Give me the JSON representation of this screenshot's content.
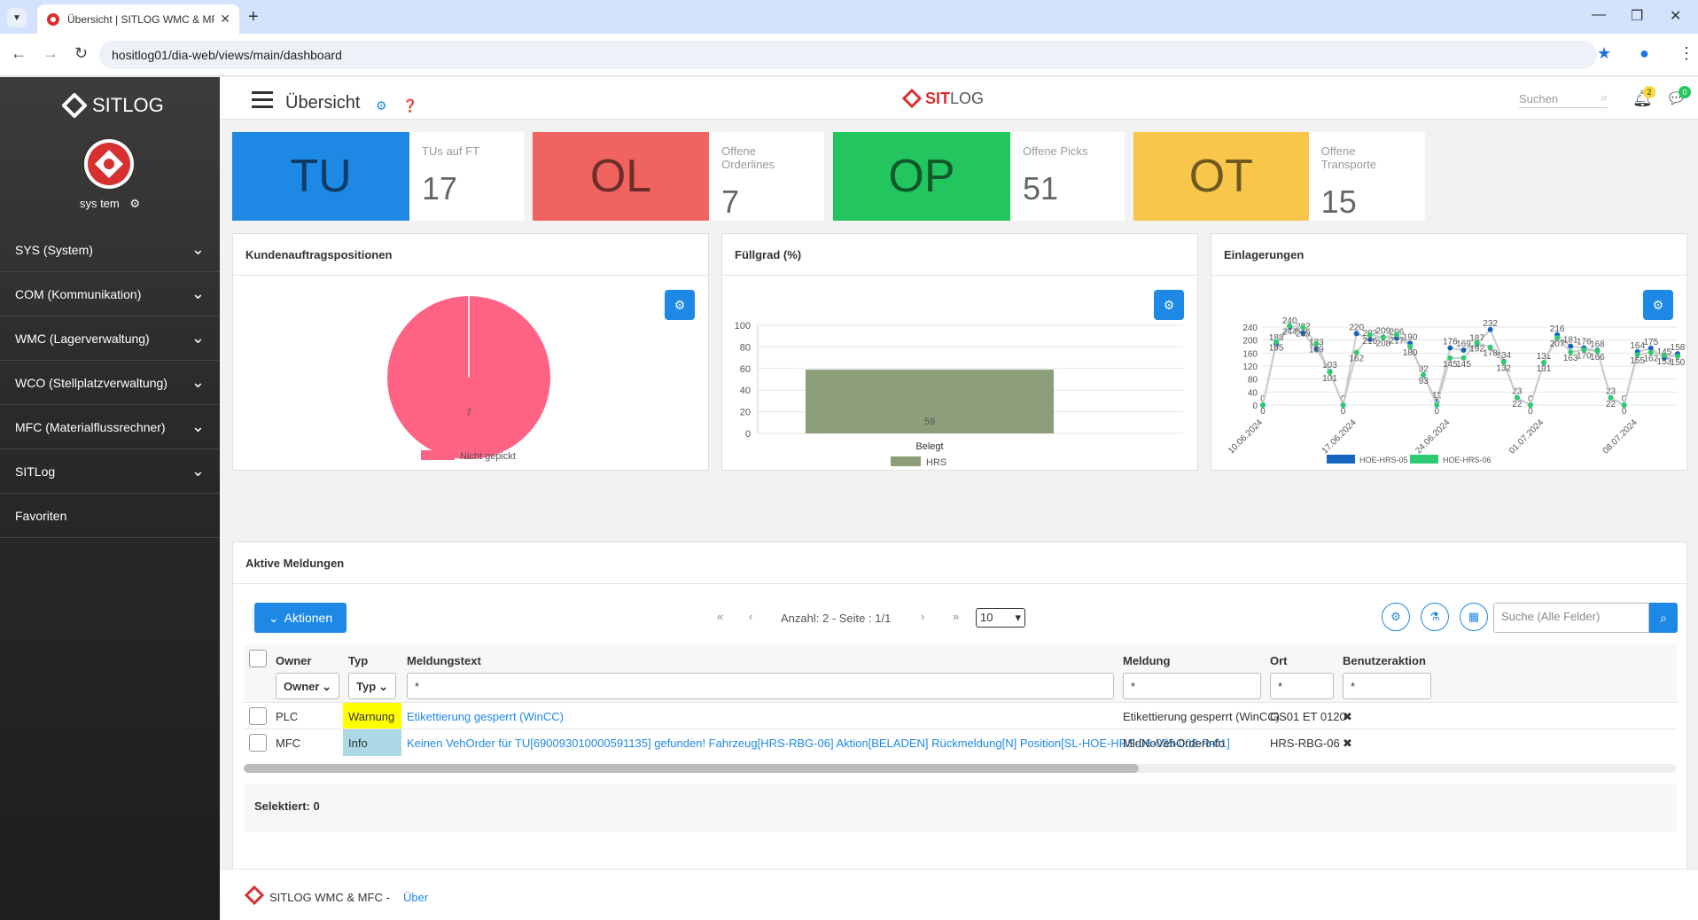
{
  "browser": {
    "tab_title": "Übersicht | SITLOG WMC & MF...",
    "url": "hositlog01/dia-web/views/main/dashboard"
  },
  "sidebar": {
    "brand": "SITLOG",
    "user": "sys tem",
    "items": [
      {
        "label": "SYS (System)",
        "expandable": true
      },
      {
        "label": "COM (Kommunikation)",
        "expandable": true
      },
      {
        "label": "WMC (Lagerverwaltung)",
        "expandable": true
      },
      {
        "label": "WCO (Stellplatzverwaltung)",
        "expandable": true
      },
      {
        "label": "MFC (Materialflussrechner)",
        "expandable": true
      },
      {
        "label": "SITLog",
        "expandable": true
      },
      {
        "label": "Favoriten",
        "expandable": false
      }
    ]
  },
  "header": {
    "title": "Übersicht",
    "brand_a": "SIT",
    "brand_b": "LOG",
    "search_placeholder": "Suchen",
    "bell_count": "2",
    "chat_count": "0"
  },
  "kpis": [
    {
      "abbr": "TU",
      "label": "TUs auf FT",
      "value": "17",
      "color": "#1e88e5"
    },
    {
      "abbr": "OL",
      "label": "Offene Orderlines",
      "value": "7",
      "color": "#ef6461"
    },
    {
      "abbr": "OP",
      "label": "Offene Picks",
      "value": "51",
      "color": "#22c55e"
    },
    {
      "abbr": "OT",
      "label": "Offene Transporte",
      "value": "15",
      "color": "#f8c64a"
    }
  ],
  "panels": {
    "p1": "Kundenauftragspositionen",
    "p2": "Füllgrad (%)",
    "p3": "Einlagerungen",
    "p4": "Aktive Meldungen"
  },
  "chart_data": [
    {
      "type": "pie",
      "title": "Kundenauftragspositionen",
      "slices": [
        {
          "name": "Nicht gepickt",
          "value": 7
        }
      ],
      "color": "#ff6384"
    },
    {
      "type": "bar",
      "title": "Füllgrad (%)",
      "categories": [
        "Belegt"
      ],
      "series": [
        {
          "name": "HRS",
          "values": [
            59
          ]
        }
      ],
      "ylim": [
        0,
        100
      ],
      "yticks": [
        0,
        20,
        40,
        60,
        80,
        100
      ],
      "color": "#8d9e7b"
    },
    {
      "type": "line",
      "title": "Einlagerungen",
      "xticks": [
        "10.06.2024",
        "17.06.2024",
        "24.06.2024",
        "01.07.2024",
        "08.07.2024"
      ],
      "yticks": [
        0,
        40,
        80,
        120,
        160,
        200,
        240
      ],
      "ylim": [
        0,
        240
      ],
      "series": [
        {
          "name": "HOE-HRS-05",
          "color": "#1565c0",
          "values": [
            0,
            188,
            240,
            222,
            173,
            103,
            0,
            220,
            202,
            209,
            206,
            190,
            92,
            11,
            176,
            169,
            187,
            232,
            134,
            23,
            0,
            131,
            216,
            181,
            176,
            168,
            23,
            0,
            164,
            175,
            145,
            158
          ]
        },
        {
          "name": "HOE-HRS-06",
          "color": "#2ecc71",
          "values": [
            0,
            195,
            244,
            239,
            189,
            101,
            0,
            162,
            216,
            208,
            217,
            180,
            93,
            0,
            145,
            145,
            192,
            178,
            132,
            22,
            0,
            131,
            207,
            163,
            170,
            166,
            22,
            0,
            155,
            162,
            153,
            150
          ]
        }
      ]
    }
  ],
  "table": {
    "aktionen": "Aktionen",
    "pager": "Anzahl: 2 - Seite : 1/1",
    "page_size": "10",
    "search_placeholder": "Suche (Alle Felder)",
    "headers": {
      "owner": "Owner",
      "typ": "Typ",
      "text": "Meldungstext",
      "meldung": "Meldung",
      "ort": "Ort",
      "ben": "Benutzeraktion"
    },
    "filters": {
      "owner": "Owner",
      "typ": "Typ",
      "text": "*",
      "meldung": "*",
      "ort": "*",
      "ben": "*"
    },
    "rows": [
      {
        "owner": "PLC",
        "typ": "Warnung",
        "text": "Etikettierung gesperrt (WinCC)",
        "meldung": "Etikettierung gesperrt (WinCC)",
        "ort": "GS01 ET 0120",
        "ben": "✖"
      },
      {
        "owner": "MFC",
        "typ": "Info",
        "text": "Keinen VehOrder für TU[690093010000591135] gefunden! Fahrzeug[HRS-RBG-06] Aktion[BELADEN] Rückmeldung[N] Position[SL-HOE-HRS-06-035-008-R-01]",
        "meldung": "MldNoVehOrderInfo",
        "ort": "HRS-RBG-06",
        "ben": "✖"
      }
    ],
    "selected": "Selektiert: 0"
  },
  "footer": {
    "text": "SITLOG WMC & MFC -",
    "link": "Über"
  }
}
